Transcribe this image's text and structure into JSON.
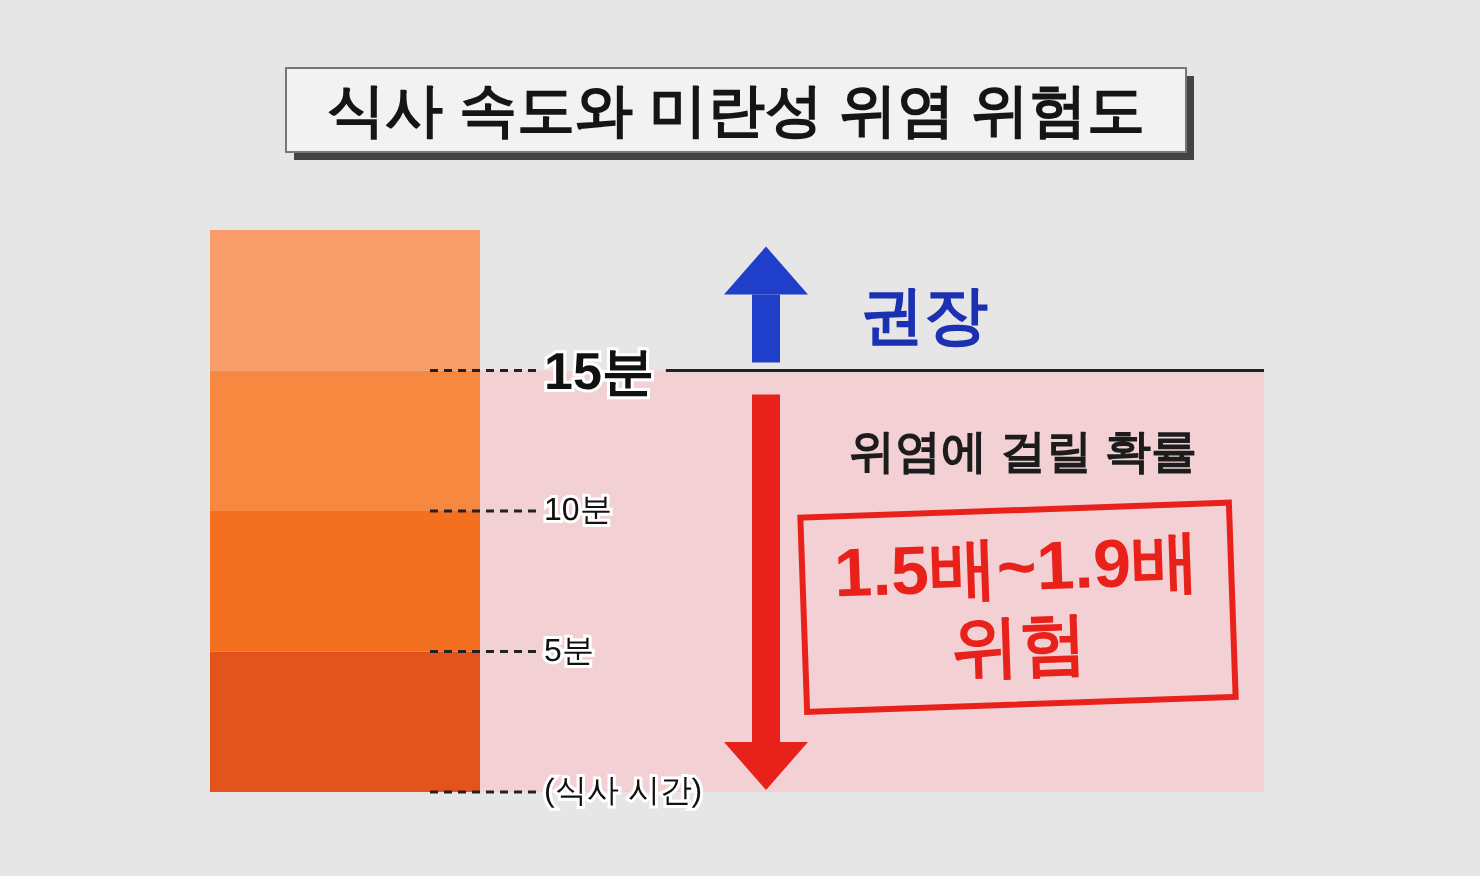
{
  "chart_data": {
    "type": "bar",
    "title": "식사 속도와 미란성 위염 위험도",
    "categories": [
      null
    ],
    "stacked": true,
    "series": [
      {
        "color": "#e3541c",
        "values": [
          5
        ]
      },
      {
        "color": "#f2701f",
        "values": [
          5
        ]
      },
      {
        "color": "#f6883f",
        "values": [
          5
        ]
      },
      {
        "color": "#f89c68",
        "values": [
          5
        ]
      }
    ],
    "ylim": [
      0,
      20
    ],
    "yticks": [
      {
        "value": 0,
        "label": "(식사 시간)"
      },
      {
        "value": 5,
        "label": "5분"
      },
      {
        "value": 10,
        "label": "10분"
      }
    ],
    "tick_labels": "y",
    "ref_lines": [
      {
        "axis": "y",
        "value": 15,
        "label": "15분",
        "color": "#222222"
      }
    ],
    "bands": [
      {
        "axis": "y",
        "from": 0,
        "to": 15,
        "label": "위염에 걸릴 확률",
        "color": "#f3d0d4"
      }
    ],
    "annotations": [
      "권장",
      "1.5배~1.9배\n위험"
    ]
  }
}
